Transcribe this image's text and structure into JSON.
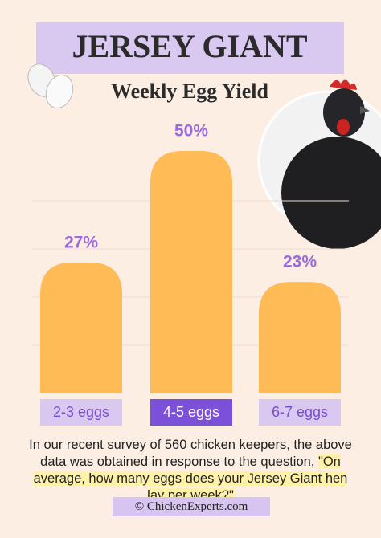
{
  "chart_data": {
    "type": "bar",
    "title": "JERSEY GIANT",
    "subtitle": "Weekly Egg Yield",
    "categories": [
      "2-3 eggs",
      "4-5 eggs",
      "6-7 eggs"
    ],
    "values": [
      27,
      50,
      23
    ],
    "value_labels": [
      "27%",
      "50%",
      "23%"
    ],
    "color": "#ffbb55",
    "label_color": "#9a6ae0",
    "highlight_index": 1,
    "caption": "In our recent survey of 560 chicken keepers, the above data was obtained in response to the question,",
    "quote": "\"On average, how many eggs does your Jersey Giant hen lay per week?\"",
    "footer": "© ChickenExperts.com"
  }
}
